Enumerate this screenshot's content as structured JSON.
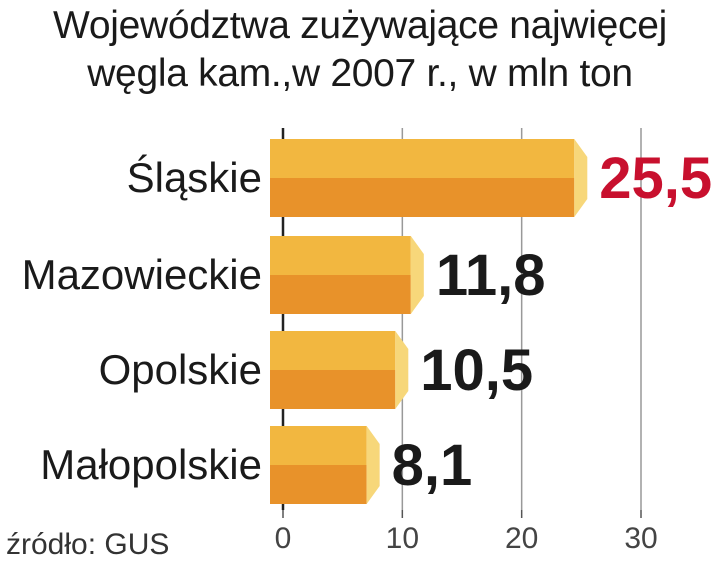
{
  "chart_data": {
    "type": "bar",
    "orientation": "horizontal",
    "title": "Województwa zużywające najwięcej węgla kam.,w 2007 r., w mln ton",
    "title_lines": [
      "Województwa zużywające najwięcej",
      "węgla kam.,w 2007 r., w mln ton"
    ],
    "categories": [
      "Śląskie",
      "Mazowieckie",
      "Opolskie",
      "Małopolskie"
    ],
    "values": [
      25.5,
      11.8,
      10.5,
      8.1
    ],
    "value_labels": [
      "25,5",
      "11,8",
      "10,5",
      "8,1"
    ],
    "highlight_index": 0,
    "xlim": [
      0,
      30
    ],
    "x_ticks": [
      0,
      10,
      20,
      30
    ],
    "x_tick_labels": [
      "0",
      "10",
      "20",
      "30"
    ],
    "grid": true,
    "source": "źródło: GUS",
    "colors": {
      "bar_top": "#f2b740",
      "bar_bottom": "#e8922a",
      "bar_end": "#f7d77a",
      "highlight_label": "#c8102e",
      "label": "#1a1a1a",
      "grid": "#999999"
    }
  }
}
